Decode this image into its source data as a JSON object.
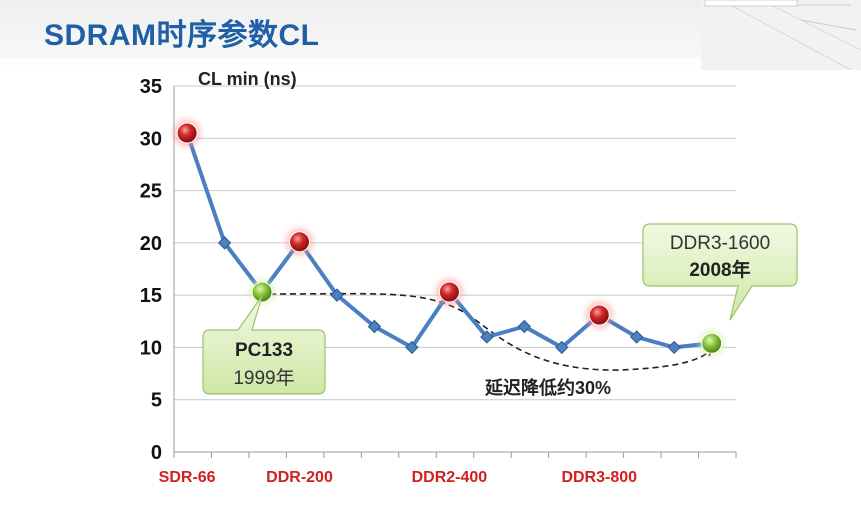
{
  "slide": {
    "title": "SDRAM时序参数CL"
  },
  "chart_data": {
    "type": "line",
    "title": "",
    "ylabel": "CL min (ns)",
    "xlabel": "",
    "ylim": [
      0,
      35
    ],
    "yticks": [
      0,
      5,
      10,
      15,
      20,
      25,
      30,
      35
    ],
    "grid": true,
    "x_tick_labels": [
      {
        "index": 0,
        "label": "SDR-66"
      },
      {
        "index": 3,
        "label": "DDR-200"
      },
      {
        "index": 7,
        "label": "DDR2-400"
      },
      {
        "index": 11,
        "label": "DDR3-800"
      }
    ],
    "series": [
      {
        "values": [
          30.5,
          20,
          15.3,
          20.1,
          15,
          12,
          10,
          15.3,
          11,
          12,
          10,
          13.1,
          11,
          10,
          10.4
        ]
      }
    ],
    "highlight_points_red": [
      0,
      3,
      7,
      11
    ],
    "highlight_points_green": [
      2,
      14
    ],
    "line_color": "#4a7fc1",
    "marker_color": "#3f6fb0",
    "red_color": "#d42a2a",
    "green_color": "#8cc63f",
    "annotations": {
      "pc133_name": "PC133",
      "pc133_year": "1999年",
      "ddr3_name": "DDR3-1600",
      "ddr3_year": "2008年",
      "reduction": "延迟降低约30%"
    }
  }
}
